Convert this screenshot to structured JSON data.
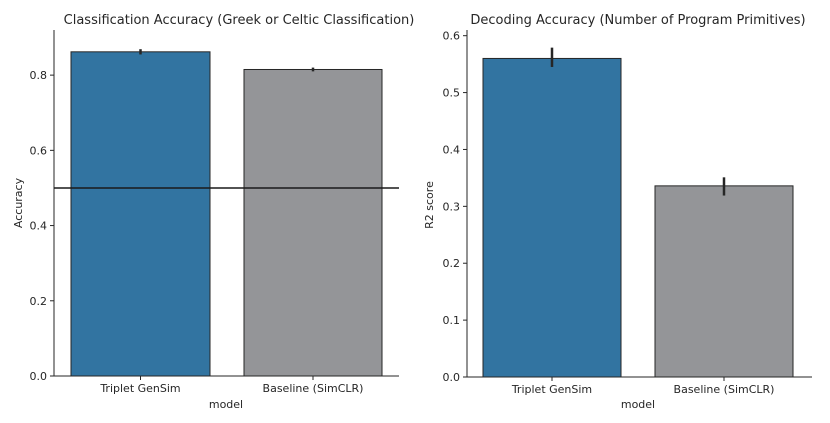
{
  "chart_data": [
    {
      "type": "bar",
      "title": "Classification Accuracy (Greek or Celtic Classification)",
      "xlabel": "model",
      "ylabel": "Accuracy",
      "categories": [
        "Triplet GenSim",
        "Baseline (SimCLR)"
      ],
      "values": [
        0.862,
        0.815
      ],
      "error_low": [
        0.855,
        0.81
      ],
      "error_high": [
        0.869,
        0.82
      ],
      "ylim": [
        0,
        0.92
      ],
      "yticks": [
        "0.0",
        "0.2",
        "0.4",
        "0.6",
        "0.8"
      ],
      "ytick_values": [
        0,
        0.2,
        0.4,
        0.6,
        0.8
      ],
      "reference_line": 0.5,
      "colors": [
        "#3274a1",
        "#949598"
      ],
      "grid": false,
      "legend": "none"
    },
    {
      "type": "bar",
      "title": "Decoding Accuracy (Number of Program Primitives)",
      "xlabel": "model",
      "ylabel": "R2 score",
      "categories": [
        "Triplet GenSim",
        "Baseline (SimCLR)"
      ],
      "values": [
        0.56,
        0.336
      ],
      "error_low": [
        0.545,
        0.319
      ],
      "error_high": [
        0.579,
        0.351
      ],
      "ylim": [
        0,
        0.61
      ],
      "yticks": [
        "0.0",
        "0.1",
        "0.2",
        "0.3",
        "0.4",
        "0.5",
        "0.6"
      ],
      "ytick_values": [
        0,
        0.1,
        0.2,
        0.3,
        0.4,
        0.5,
        0.6
      ],
      "colors": [
        "#3274a1",
        "#949598"
      ],
      "grid": false,
      "legend": "none"
    }
  ]
}
